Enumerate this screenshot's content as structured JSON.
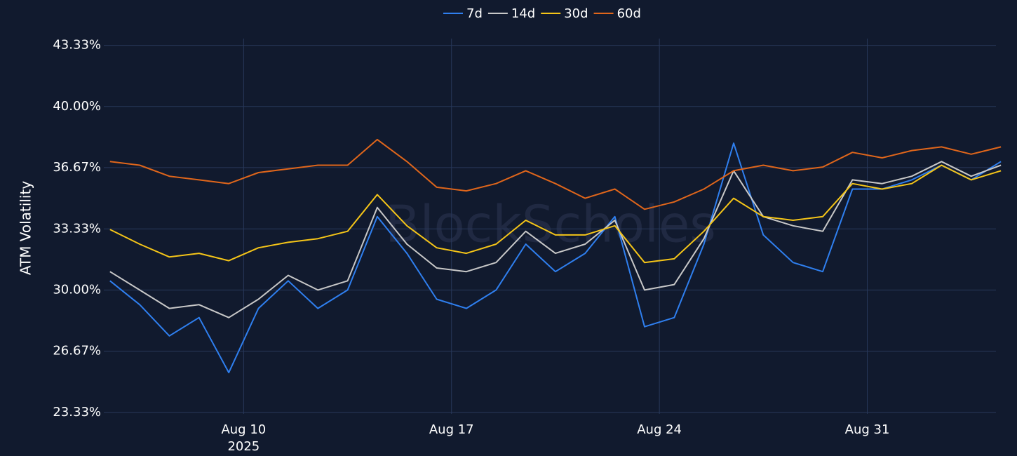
{
  "chart_data": {
    "type": "line",
    "y_axis_label": "ATM Volatility",
    "watermark": "BlockScholes",
    "x": [
      "2025-08-05",
      "2025-08-06",
      "2025-08-07",
      "2025-08-08",
      "2025-08-09",
      "2025-08-10",
      "2025-08-11",
      "2025-08-12",
      "2025-08-13",
      "2025-08-14",
      "2025-08-15",
      "2025-08-16",
      "2025-08-17",
      "2025-08-18",
      "2025-08-19",
      "2025-08-20",
      "2025-08-21",
      "2025-08-22",
      "2025-08-23",
      "2025-08-24",
      "2025-08-25",
      "2025-08-26",
      "2025-08-27",
      "2025-08-28",
      "2025-08-29",
      "2025-08-30",
      "2025-08-31",
      "2025-09-01",
      "2025-09-02",
      "2025-09-03",
      "2025-09-04"
    ],
    "series": [
      {
        "name": "7d",
        "color": "#2f7fef",
        "values": [
          30.5,
          29.2,
          27.5,
          28.5,
          25.5,
          29.0,
          30.5,
          29.0,
          30.0,
          34.0,
          32.0,
          29.5,
          29.0,
          30.0,
          32.5,
          31.0,
          32.0,
          34.0,
          28.0,
          28.5,
          32.5,
          38.0,
          33.0,
          31.5,
          31.0,
          35.5,
          35.5,
          36.0,
          36.8,
          36.0,
          37.0
        ]
      },
      {
        "name": "14d",
        "color": "#c8c8c8",
        "values": [
          31.0,
          30.0,
          29.0,
          29.2,
          28.5,
          29.5,
          30.8,
          30.0,
          30.5,
          34.5,
          32.5,
          31.2,
          31.0,
          31.5,
          33.2,
          32.0,
          32.5,
          33.8,
          30.0,
          30.3,
          32.8,
          36.5,
          34.0,
          33.5,
          33.2,
          36.0,
          35.8,
          36.2,
          37.0,
          36.2,
          36.8
        ]
      },
      {
        "name": "30d",
        "color": "#f5c518",
        "values": [
          33.3,
          32.5,
          31.8,
          32.0,
          31.6,
          32.3,
          32.6,
          32.8,
          33.2,
          35.2,
          33.5,
          32.3,
          32.0,
          32.5,
          33.8,
          33.0,
          33.0,
          33.5,
          31.5,
          31.7,
          33.2,
          35.0,
          34.0,
          33.8,
          34.0,
          35.8,
          35.5,
          35.8,
          36.8,
          36.0,
          36.5
        ]
      },
      {
        "name": "60d",
        "color": "#e0661b",
        "values": [
          37.0,
          36.8,
          36.2,
          36.0,
          35.8,
          36.4,
          36.6,
          36.8,
          36.8,
          38.2,
          37.0,
          35.6,
          35.4,
          35.8,
          36.5,
          35.8,
          35.0,
          35.5,
          34.4,
          34.8,
          35.5,
          36.5,
          36.8,
          36.5,
          36.7,
          37.5,
          37.2,
          37.6,
          37.8,
          37.4,
          37.8
        ]
      }
    ],
    "xlim": [
      "2025-08-05",
      "2025-09-04"
    ],
    "xticks": [
      {
        "value": "2025-08-10",
        "label": "Aug 10",
        "year": "2025"
      },
      {
        "value": "2025-08-17",
        "label": "Aug 17"
      },
      {
        "value": "2025-08-24",
        "label": "Aug 24"
      },
      {
        "value": "2025-08-31",
        "label": "Aug 31"
      }
    ],
    "ylim": [
      23.25,
      43.7
    ],
    "yticks": [
      {
        "value": 23.33,
        "label": "23.33%"
      },
      {
        "value": 26.67,
        "label": "26.67%"
      },
      {
        "value": 30,
        "label": "30.00%"
      },
      {
        "value": 33.33,
        "label": "33.33%"
      },
      {
        "value": 36.67,
        "label": "36.67%"
      },
      {
        "value": 40,
        "label": "40.00%"
      },
      {
        "value": 43.33,
        "label": "43.33%"
      }
    ],
    "grid": true,
    "legend": "top"
  }
}
